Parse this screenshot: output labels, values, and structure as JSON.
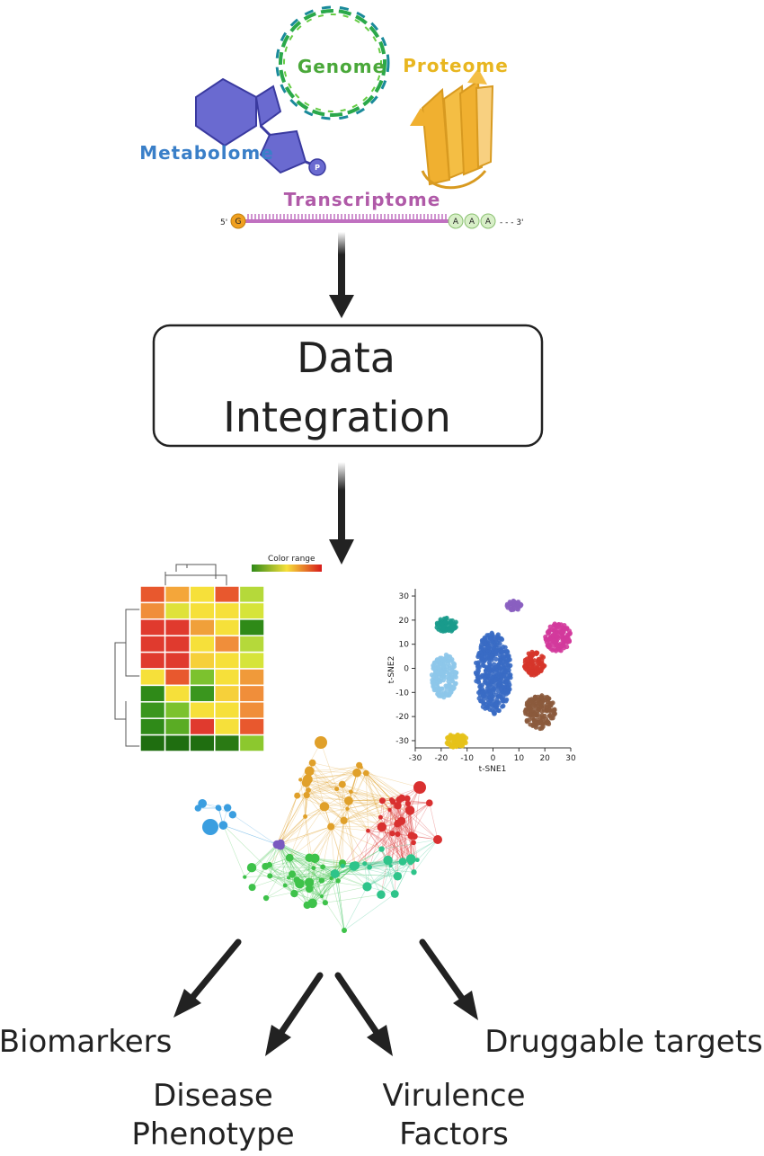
{
  "omics": {
    "genome": "Genome",
    "proteome": "Proteome",
    "metabolome": "Metabolome",
    "transcriptome": "Transcriptome",
    "phosphate": "P",
    "rna": {
      "five_prime": "5'",
      "cap": "G",
      "polyA": [
        "A",
        "A",
        "A"
      ],
      "three_prime": "- - - 3'"
    }
  },
  "integration": {
    "line1": "Data",
    "line2": "Integration"
  },
  "heatmap": {
    "legend_title": "Color range",
    "cells": [
      [
        "#e8582e",
        "#f4a63a",
        "#f6e03a",
        "#e8582e",
        "#b5d93a"
      ],
      [
        "#f08e3a",
        "#dfe23a",
        "#f6e03a",
        "#f6e03a",
        "#d6e43a"
      ],
      [
        "#e03a2e",
        "#e03a2e",
        "#f0a03a",
        "#f6e03a",
        "#2f8a18"
      ],
      [
        "#e03a2e",
        "#e03a2e",
        "#f6e03a",
        "#f08e3a",
        "#b5d93a"
      ],
      [
        "#e03a2e",
        "#e03a2e",
        "#f6d03a",
        "#f6e03a",
        "#d6e43a"
      ],
      [
        "#f6e03a",
        "#e8582e",
        "#7cc22e",
        "#f6e03a",
        "#f09a3a"
      ],
      [
        "#2f8a18",
        "#f6e03a",
        "#3a961e",
        "#f6d03a",
        "#f08e3a"
      ],
      [
        "#3a961e",
        "#7cc22e",
        "#f6e03a",
        "#f6e03a",
        "#f08e3a"
      ],
      [
        "#2f8a18",
        "#5aac24",
        "#e03a2e",
        "#f6e03a",
        "#e8582e"
      ],
      [
        "#1f6e10",
        "#1f6e10",
        "#1f6e10",
        "#2a7a14",
        "#8cc82e"
      ]
    ]
  },
  "tsne": {
    "x_label": "t-SNE1",
    "y_label": "t-SNE2",
    "x_ticks": [
      "-30",
      "-20",
      "-10",
      "0",
      "10",
      "20",
      "30"
    ],
    "y_ticks": [
      "30",
      "20",
      "10",
      "0",
      "-10",
      "-20",
      "-30"
    ],
    "clusters": [
      {
        "color": "#3a6bc4",
        "cx": 0,
        "cy": -2,
        "rx": 7,
        "ry": 17,
        "n": 420
      },
      {
        "color": "#8dc7ea",
        "cx": -19,
        "cy": -3,
        "rx": 5,
        "ry": 9,
        "n": 170
      },
      {
        "color": "#1a9b8c",
        "cx": -18,
        "cy": 18,
        "rx": 4,
        "ry": 3,
        "n": 60
      },
      {
        "color": "#8a5fc0",
        "cx": 8,
        "cy": 26,
        "rx": 3,
        "ry": 2,
        "n": 40
      },
      {
        "color": "#d33a9c",
        "cx": 25,
        "cy": 13,
        "rx": 5,
        "ry": 6,
        "n": 130
      },
      {
        "color": "#d6352a",
        "cx": 16,
        "cy": 2,
        "rx": 4,
        "ry": 5,
        "n": 90
      },
      {
        "color": "#8b5a3c",
        "cx": 18,
        "cy": -18,
        "rx": 6,
        "ry": 7,
        "n": 140
      },
      {
        "color": "#e6c21a",
        "cx": -14,
        "cy": -30,
        "rx": 4,
        "ry": 3,
        "n": 80
      }
    ]
  },
  "network": {
    "colors": {
      "orange": "#e0a02a",
      "red": "#d93030",
      "green": "#3ec24a",
      "teal": "#2ec48a",
      "blue": "#3a9ee0",
      "purple": "#7a5ac0"
    }
  },
  "outcomes": {
    "biomarkers": "Biomarkers",
    "disease_1": "Disease",
    "disease_2": "Phenotype",
    "virulence_1": "Virulence",
    "virulence_2": "Factors",
    "druggable": "Druggable targets"
  }
}
